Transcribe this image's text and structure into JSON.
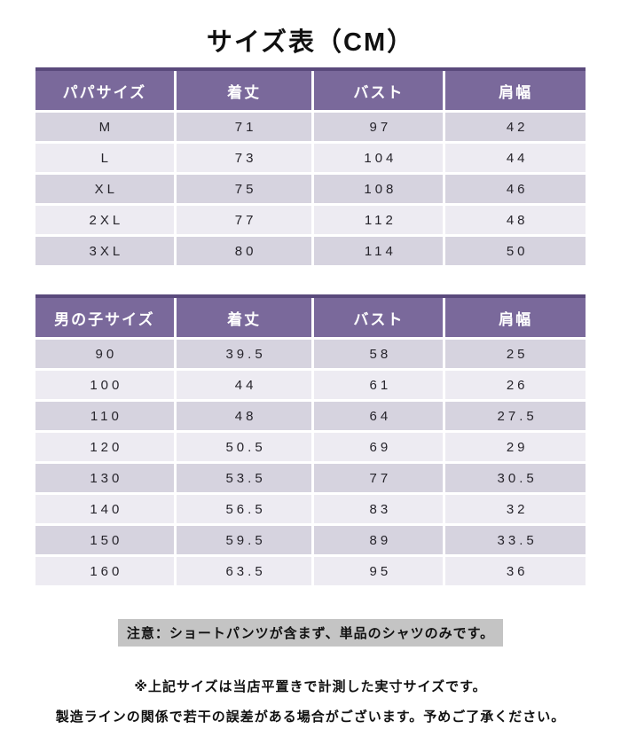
{
  "title": "サイズ表（CM）",
  "colors": {
    "header_bg": "#7a699b",
    "header_top_border": "#5a4a7c",
    "header_text": "#ffffff",
    "row_dark": "#d6d3df",
    "row_light": "#edebf2",
    "note_bg": "#c4c4c4",
    "text": "#1a1a1a"
  },
  "tables": [
    {
      "name": "adult-size-table",
      "headers": [
        "パパサイズ",
        "着丈",
        "バスト",
        "肩幅"
      ],
      "rows": [
        [
          "M",
          "71",
          "97",
          "42"
        ],
        [
          "L",
          "73",
          "104",
          "44"
        ],
        [
          "XL",
          "75",
          "108",
          "46"
        ],
        [
          "2XL",
          "77",
          "112",
          "48"
        ],
        [
          "3XL",
          "80",
          "114",
          "50"
        ]
      ]
    },
    {
      "name": "boy-size-table",
      "headers": [
        "男の子サイズ",
        "着丈",
        "バスト",
        "肩幅"
      ],
      "rows": [
        [
          "90",
          "39.5",
          "58",
          "25"
        ],
        [
          "100",
          "44",
          "61",
          "26"
        ],
        [
          "110",
          "48",
          "64",
          "27.5"
        ],
        [
          "120",
          "50.5",
          "69",
          "29"
        ],
        [
          "130",
          "53.5",
          "77",
          "30.5"
        ],
        [
          "140",
          "56.5",
          "83",
          "32"
        ],
        [
          "150",
          "59.5",
          "89",
          "33.5"
        ],
        [
          "160",
          "63.5",
          "95",
          "36"
        ]
      ]
    }
  ],
  "note": "注意：ショートパンツが含まず、単品のシャツのみです。",
  "footer_lines": [
    "※上記サイズは当店平置きで計測した実寸サイズです。",
    "製造ラインの関係で若干の誤差がある場合がございます。予めご了承ください。"
  ]
}
